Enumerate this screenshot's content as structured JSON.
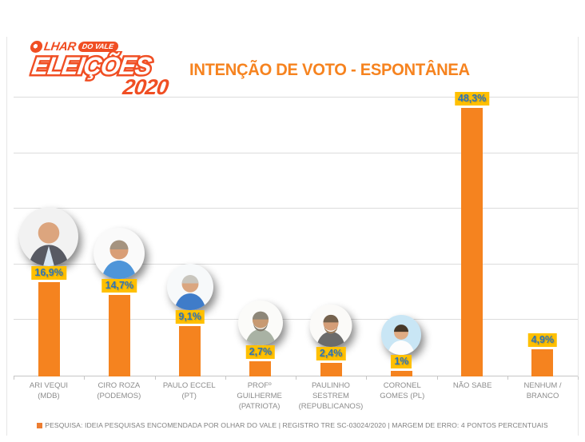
{
  "logo": {
    "brand_prefix": "LHAR",
    "brand_suffix": "DO VALE",
    "title": "ELEIÇÕES",
    "year": "2020"
  },
  "chart_data": {
    "type": "bar",
    "title": "INTENÇÃO DE VOTO - ESPONTÂNEA",
    "categories": [
      "ARI VEQUI (MDB)",
      "CIRO ROZA (PODEMOS)",
      "PAULO ECCEL (PT)",
      "PROFº GUILHERME (PATRIOTA)",
      "PAULINHO SESTREM (REPUBLICANOS)",
      "CORONEL GOMES (PL)",
      "NÃO SABE",
      "NENHUM / BRANCO"
    ],
    "values": [
      16.9,
      14.7,
      9.1,
      2.7,
      2.4,
      1,
      48.3,
      4.9
    ],
    "value_labels": [
      "16,9%",
      "14,7%",
      "9,1%",
      "2,7%",
      "2,4%",
      "1%",
      "48,3%",
      "4,9%"
    ],
    "xlabel": "",
    "ylabel": "",
    "ylim": [
      0,
      50
    ],
    "gridline_step": 10,
    "grid": true,
    "legend_position": "none",
    "colors": {
      "bar": "#F5831F",
      "value_label_bg": "#FFC000",
      "value_label_text": "#2E75B6",
      "gridline": "#DCDCDC",
      "category_text": "#8C8C8C",
      "title": "#F6831F"
    },
    "source_note": "PESQUISA: IDEIA PESQUISAS ENCOMENDADA POR OLHAR DO VALE | REGISTRO TRE SC-03024/2020 | MARGEM DE ERRO: 4 PONTOS PERCENTUAIS"
  },
  "footer": {
    "text": "PESQUISA: IDEIA PESQUISAS ENCOMENDADA POR OLHAR DO VALE | REGISTRO TRE SC-03024/2020 | MARGEM DE ERRO: 4 PONTOS PERCENTUAIS"
  },
  "avatars": [
    {
      "name": "ari-vequi-photo",
      "bg": "#F2F2F2",
      "skin": "#DCA57E",
      "hair": null,
      "shirt": "#585A63",
      "collar": "#D8E6F2",
      "beard": null
    },
    {
      "name": "ciro-roza-photo",
      "bg": "#FAFAFA",
      "skin": "#D99E76",
      "hair": "#A5937F",
      "shirt": "#4E95D9",
      "collar": null,
      "beard": null
    },
    {
      "name": "paulo-eccel-photo",
      "bg": "#F7F9FA",
      "skin": "#DBA67F",
      "hair": "#C9C6BE",
      "shirt": "#3F7CC9",
      "collar": null,
      "beard": null
    },
    {
      "name": "prof-guilherme-photo",
      "bg": "#FBFBF9",
      "skin": "#C89A72",
      "hair": "#8D8779",
      "shirt": "#A9B2A4",
      "collar": null,
      "beard": "#837D6F"
    },
    {
      "name": "paulinho-sestrem-photo",
      "bg": "#FBFAF8",
      "skin": "#D59E78",
      "hair": "#75624E",
      "shirt": "#6B6B6B",
      "collar": null,
      "beard": "#9A7C5C"
    },
    {
      "name": "coronel-gomes-photo",
      "bg": "#C9E6F5",
      "skin": "#E0AC84",
      "hair": "#473828",
      "shirt": "#FDFDFD",
      "collar": null,
      "beard": null
    },
    null,
    null
  ]
}
